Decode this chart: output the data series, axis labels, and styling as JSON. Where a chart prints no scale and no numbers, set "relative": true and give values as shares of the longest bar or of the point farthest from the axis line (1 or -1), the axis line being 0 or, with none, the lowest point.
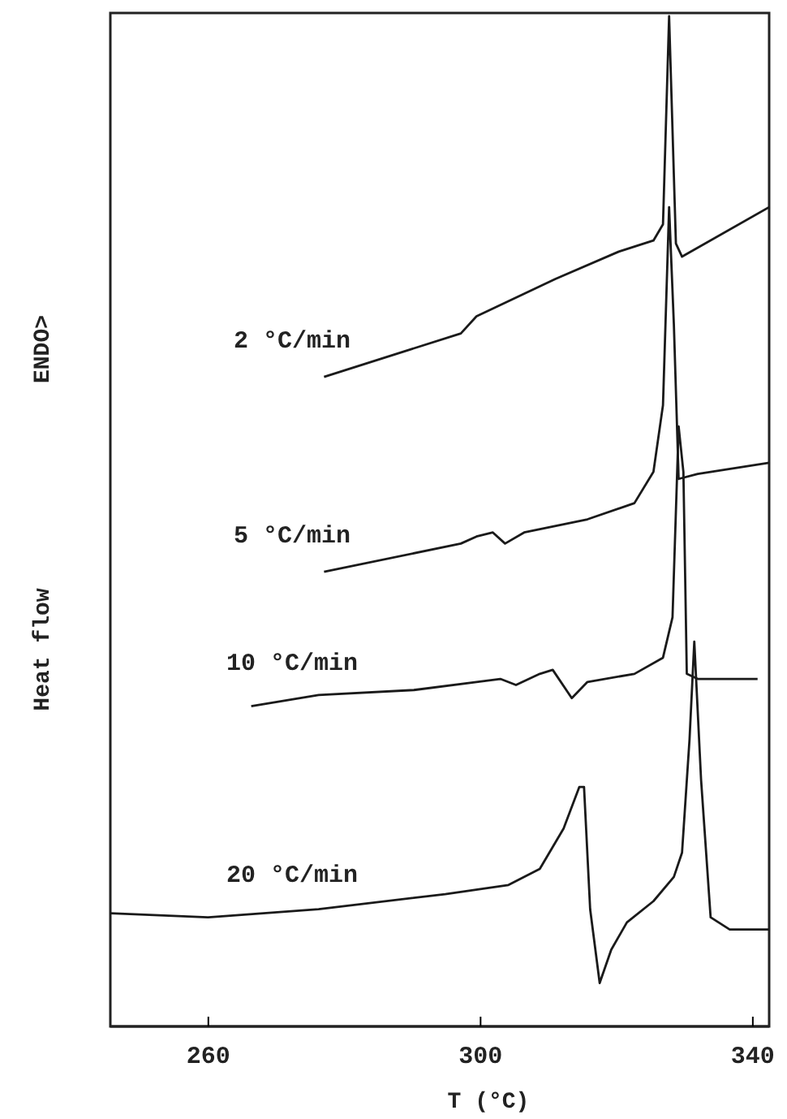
{
  "chart_data": {
    "type": "line",
    "relative": true,
    "xlabel": "T (°C)",
    "ylabel": "Heat flow",
    "annotations": [
      "ENDO>"
    ],
    "xlim": [
      245.6,
      342.4
    ],
    "xticks": [
      260,
      300,
      340
    ],
    "line_style": "solid",
    "marker": "none",
    "series": [
      {
        "name": "2 °C/min",
        "color": "#1a1a1a",
        "x": [
          277,
          297.1,
          299.4,
          311,
          320.3,
          325.4,
          326.8,
          327.7,
          328.7,
          329.6,
          342.4
        ],
        "values": [
          0.643,
          0.686,
          0.703,
          0.74,
          0.767,
          0.778,
          0.794,
          1.0,
          0.775,
          0.762,
          0.811
        ]
      },
      {
        "name": "5 °C/min",
        "color": "#1a1a1a",
        "x": [
          277,
          297.1,
          299.4,
          301.8,
          303.6,
          306.4,
          315.7,
          322.6,
          325.4,
          326.8,
          327.7,
          328.4,
          329.1,
          331.9,
          342.4
        ],
        "values": [
          0.45,
          0.478,
          0.485,
          0.489,
          0.478,
          0.489,
          0.502,
          0.518,
          0.549,
          0.615,
          0.811,
          0.695,
          0.542,
          0.547,
          0.558
        ]
      },
      {
        "name": "10 °C/min",
        "color": "#1a1a1a",
        "x": [
          266.3,
          276.2,
          290.2,
          299.4,
          302.9,
          305.2,
          308.7,
          310.6,
          313.4,
          315.7,
          322.6,
          326.8,
          328.2,
          329.1,
          329.8,
          330.3,
          331.9,
          340.7
        ],
        "values": [
          0.317,
          0.328,
          0.333,
          0.341,
          0.344,
          0.338,
          0.349,
          0.353,
          0.325,
          0.341,
          0.349,
          0.365,
          0.405,
          0.594,
          0.549,
          0.349,
          0.344,
          0.344
        ]
      },
      {
        "name": "20 °C/min",
        "color": "#1a1a1a",
        "x": [
          245.6,
          260,
          276.2,
          294.8,
          304.1,
          308.7,
          312.2,
          314.5,
          315.2,
          316.1,
          317.5,
          319.2,
          321.5,
          325.4,
          328.4,
          329.6,
          330.7,
          331.4,
          332.4,
          333.8,
          336.6,
          342.4
        ],
        "values": [
          0.112,
          0.108,
          0.116,
          0.131,
          0.14,
          0.156,
          0.196,
          0.237,
          0.237,
          0.116,
          0.043,
          0.076,
          0.103,
          0.124,
          0.148,
          0.172,
          0.284,
          0.381,
          0.244,
          0.108,
          0.096,
          0.096
        ]
      }
    ]
  }
}
